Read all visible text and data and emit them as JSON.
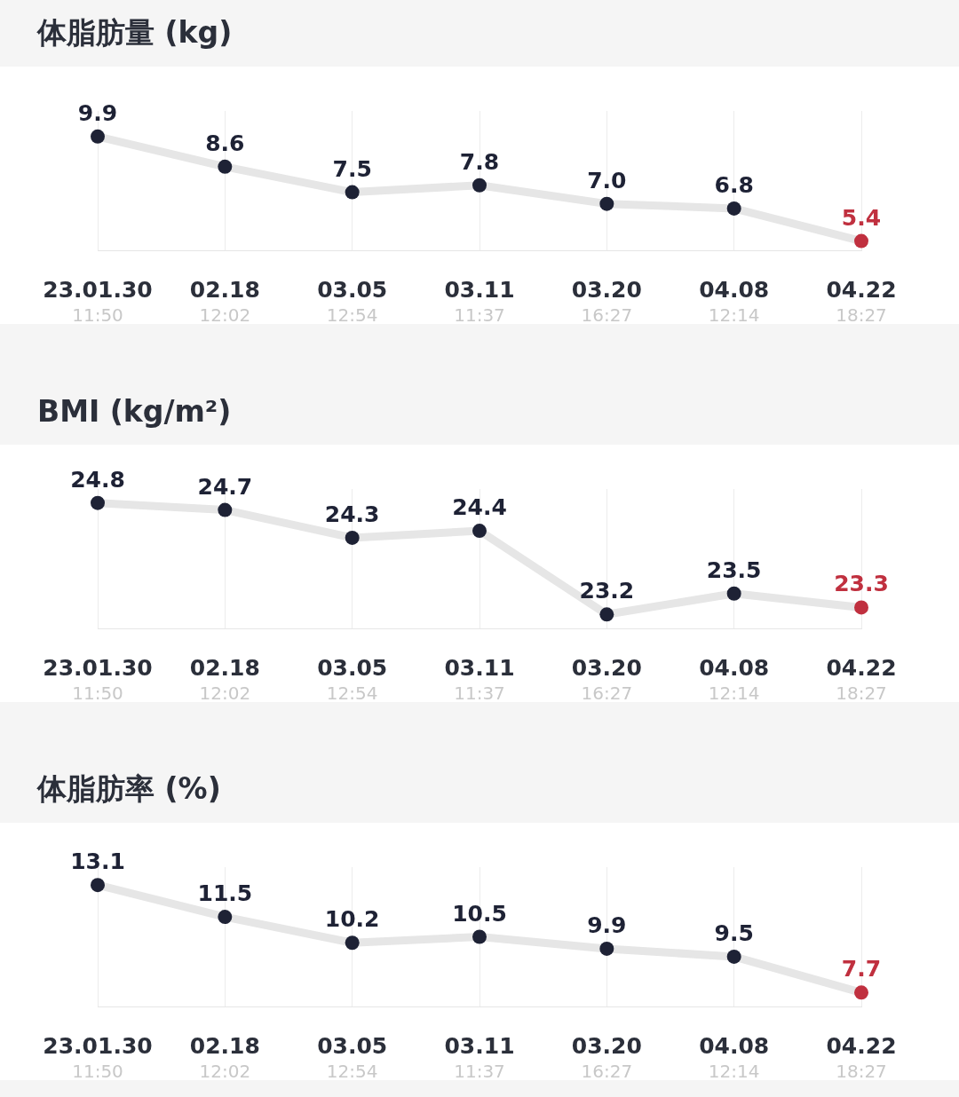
{
  "chart_data": [
    {
      "type": "line",
      "title": "体脂肪量 (kg)",
      "categories": [
        "23.01.30\n11:50",
        "02.18\n12:02",
        "03.05\n12:54",
        "03.11\n11:37",
        "03.20\n16:27",
        "04.08\n12:14",
        "04.22\n18:27"
      ],
      "grid": "x",
      "marker": "circle",
      "series": [
        {
          "color": "#e6e6e6",
          "colors": [
            "#1e2235",
            "#1e2235",
            "#1e2235",
            "#1e2235",
            "#1e2235",
            "#1e2235",
            "#c0303f"
          ],
          "values": [
            9.9,
            8.6,
            7.5,
            7.8,
            7.0,
            6.8,
            5.4
          ],
          "value_labels": [
            "9.9",
            "8.6",
            "7.5",
            "7.8",
            "7.0",
            "6.8",
            "5.4"
          ]
        }
      ]
    },
    {
      "type": "line",
      "title": "BMI (kg/m²)",
      "categories": [
        "23.01.30\n11:50",
        "02.18\n12:02",
        "03.05\n12:54",
        "03.11\n11:37",
        "03.20\n16:27",
        "04.08\n12:14",
        "04.22\n18:27"
      ],
      "grid": "x",
      "marker": "circle",
      "series": [
        {
          "color": "#e6e6e6",
          "colors": [
            "#1e2235",
            "#1e2235",
            "#1e2235",
            "#1e2235",
            "#1e2235",
            "#1e2235",
            "#c0303f"
          ],
          "values": [
            24.8,
            24.7,
            24.3,
            24.4,
            23.2,
            23.5,
            23.3
          ],
          "value_labels": [
            "24.8",
            "24.7",
            "24.3",
            "24.4",
            "23.2",
            "23.5",
            "23.3"
          ]
        }
      ]
    },
    {
      "type": "line",
      "title": "体脂肪率 (%)",
      "categories": [
        "23.01.30\n11:50",
        "02.18\n12:02",
        "03.05\n12:54",
        "03.11\n11:37",
        "03.20\n16:27",
        "04.08\n12:14",
        "04.22\n18:27"
      ],
      "grid": "x",
      "marker": "circle",
      "series": [
        {
          "color": "#e6e6e6",
          "colors": [
            "#1e2235",
            "#1e2235",
            "#1e2235",
            "#1e2235",
            "#1e2235",
            "#1e2235",
            "#c0303f"
          ],
          "values": [
            13.1,
            11.5,
            10.2,
            10.5,
            9.9,
            9.5,
            7.7
          ],
          "value_labels": [
            "13.1",
            "11.5",
            "10.2",
            "10.5",
            "9.9",
            "9.5",
            "7.7"
          ]
        }
      ]
    }
  ]
}
